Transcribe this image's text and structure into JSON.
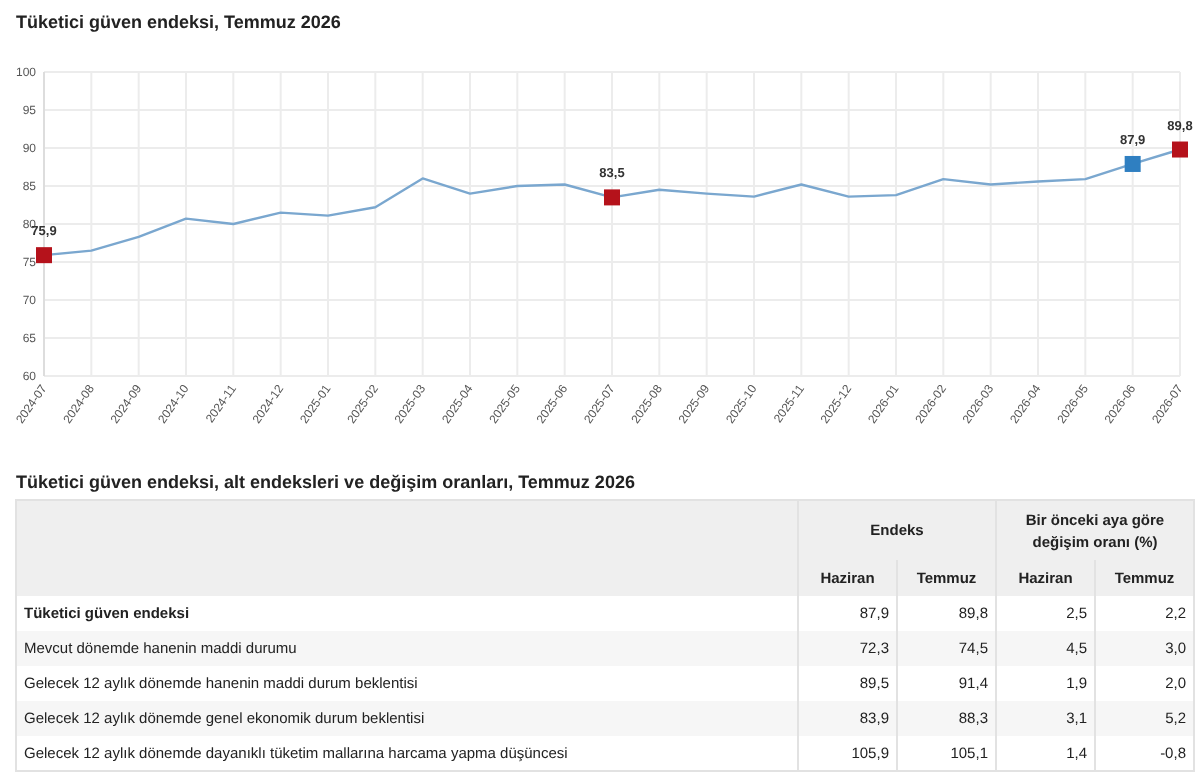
{
  "chart_data": [
    {
      "type": "line",
      "title": "Tüketici güven endeksi, Temmuz 2026",
      "categories": [
        "2024-07",
        "2024-08",
        "2024-09",
        "2024-10",
        "2024-11",
        "2024-12",
        "2025-01",
        "2025-02",
        "2025-03",
        "2025-04",
        "2025-05",
        "2025-06",
        "2025-07",
        "2025-08",
        "2025-09",
        "2025-10",
        "2025-11",
        "2025-12",
        "2026-01",
        "2026-02",
        "2026-03",
        "2026-04",
        "2026-05",
        "2026-06",
        "2026-07"
      ],
      "series": [
        {
          "type": "line",
          "color": "#7aa7cf",
          "marker": "none",
          "values": [
            75.9,
            76.5,
            78.3,
            80.7,
            80.0,
            81.5,
            81.1,
            82.2,
            86.0,
            84.0,
            85.0,
            85.2,
            83.5,
            84.5,
            84.0,
            83.6,
            85.2,
            83.6,
            83.8,
            85.9,
            85.2,
            85.6,
            85.9,
            87.9,
            89.8
          ]
        },
        {
          "type": "scatter",
          "marker": "square",
          "values": [
            75.9,
            null,
            null,
            null,
            null,
            null,
            null,
            null,
            null,
            null,
            null,
            null,
            83.5,
            null,
            null,
            null,
            null,
            null,
            null,
            null,
            null,
            null,
            null,
            87.9,
            89.8
          ],
          "colors": [
            "#b5121b",
            null,
            null,
            null,
            null,
            null,
            null,
            null,
            null,
            null,
            null,
            null,
            "#b5121b",
            null,
            null,
            null,
            null,
            null,
            null,
            null,
            null,
            null,
            null,
            "#2f7fc1",
            "#b5121b"
          ],
          "value_labels": [
            "75,9",
            null,
            null,
            null,
            null,
            null,
            null,
            null,
            null,
            null,
            null,
            null,
            "83,5",
            null,
            null,
            null,
            null,
            null,
            null,
            null,
            null,
            null,
            null,
            "87,9",
            "89,8"
          ]
        }
      ],
      "ylim": [
        60,
        100
      ],
      "yticks": [
        60,
        65,
        70,
        75,
        80,
        85,
        90,
        95,
        100
      ],
      "grid": true
    },
    {
      "type": "other",
      "title": "Tüketici güven endeksi, alt endeksleri ve değişim oranları, Temmuz 2026",
      "annotations": [
        "Endeks",
        "Bir önceki aya göre değişim oranı (%)"
      ],
      "categories": [
        "Haziran",
        "Temmuz",
        "Haziran",
        "Temmuz"
      ],
      "y_categories": [
        "Tüketici güven endeksi",
        "Mevcut dönemde hanenin maddi durumu",
        "Gelecek 12 aylık dönemde hanenin maddi durum beklentisi",
        "Gelecek 12 aylık dönemde genel ekonomik durum beklentisi",
        "Gelecek 12 aylık dönemde dayanıklı tüketim mallarına harcama yapma düşüncesi"
      ],
      "cell_labels": [
        [
          "87,9",
          "89,8",
          "2,5",
          "2,2"
        ],
        [
          "72,3",
          "74,5",
          "4,5",
          "3,0"
        ],
        [
          "89,5",
          "91,4",
          "1,9",
          "2,0"
        ],
        [
          "83,9",
          "88,3",
          "3,1",
          "5,2"
        ],
        [
          "105,9",
          "105,1",
          "1,4",
          "-0,8"
        ]
      ]
    }
  ]
}
